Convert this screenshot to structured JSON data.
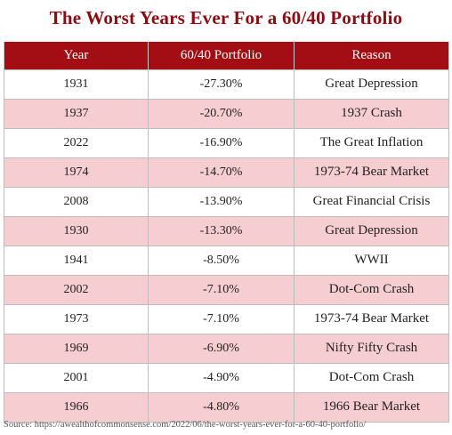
{
  "title": "The Worst Years Ever For a 60/40 Portfolio",
  "table": {
    "headers": [
      "Year",
      "60/40 Portfolio",
      "Reason"
    ],
    "rows": [
      [
        "1931",
        "-27.30%",
        "Great Depression"
      ],
      [
        "1937",
        "-20.70%",
        "1937 Crash"
      ],
      [
        "2022",
        "-16.90%",
        "The Great Inflation"
      ],
      [
        "1974",
        "-14.70%",
        "1973-74 Bear Market"
      ],
      [
        "2008",
        "-13.90%",
        "Great Financial Crisis"
      ],
      [
        "1930",
        "-13.30%",
        "Great Depression"
      ],
      [
        "1941",
        "-8.50%",
        "WWII"
      ],
      [
        "2002",
        "-7.10%",
        "Dot-Com Crash"
      ],
      [
        "1973",
        "-7.10%",
        "1973-74 Bear Market"
      ],
      [
        "1969",
        "-6.90%",
        "Nifty Fifty Crash"
      ],
      [
        "2001",
        "-4.90%",
        "Dot-Com Crash"
      ],
      [
        "1966",
        "-4.80%",
        "1966 Bear Market"
      ]
    ]
  },
  "source": "Source: https://awealthofcommonsense.com/2022/06/the-worst-years-ever-for-a-60-40-portfolio/",
  "colors": {
    "title": "#8b0d12",
    "header_bg": "#a30e14",
    "stripe": "#f6cdd0"
  }
}
